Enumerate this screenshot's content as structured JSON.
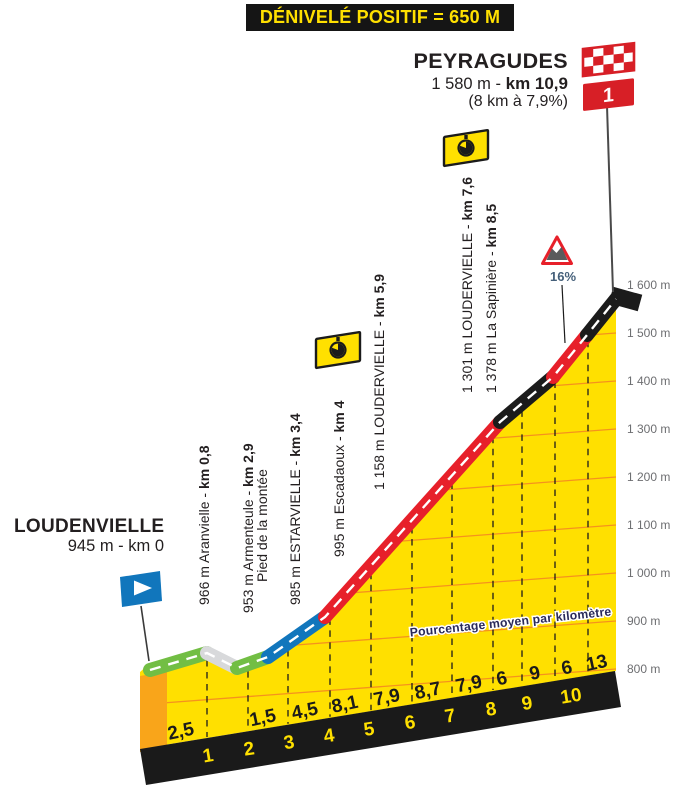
{
  "banner": {
    "text": "DÉNIVELÉ POSITIF = 650 M"
  },
  "finish": {
    "name": "PEYRAGUDES",
    "elevation_prefix": "1 580 m - ",
    "km_bold": "km 10,9",
    "note": "(8 km à 7,9%)",
    "flag_number": "1"
  },
  "start": {
    "name": "LOUDENVIELLE",
    "detail": "945 m - km 0"
  },
  "steep_warning": "16%",
  "watermark": "Pourcentage moyen par kilomètre",
  "stations": [
    {
      "normal": "966 m Aranvielle - ",
      "bold": "km 0,8"
    },
    {
      "normal": "953 m Armenteule - ",
      "bold": "km 2,9",
      "line2": "Pied de la montée"
    },
    {
      "normal": "985 m ESTARVIELLE - ",
      "bold": "km 3,4"
    },
    {
      "normal": "995 m Escadaoux - ",
      "bold": "km 4",
      "timecheck": true
    },
    {
      "normal": "1 158 m LOUDERVIELLE - ",
      "bold": "km 5,9"
    },
    {
      "normal": "1 301 m LOUDERVIELLE - ",
      "bold": "km 7,6",
      "timecheck": true
    },
    {
      "normal": "1 378 m La Sapinière - ",
      "bold": "km 8,5"
    }
  ],
  "colors": {
    "yellow": "#FFE000",
    "orange_face": "#F9A51A",
    "contour": "#F5921E",
    "band_black": "#1A1A1A",
    "road_green": "#72BE44",
    "road_blue": "#1176BC",
    "road_red": "#E7202A",
    "road_black": "#1B1B1B",
    "road_descent": "#D8D9DB",
    "flag_red": "#D71F26",
    "flag_blue": "#1176BC",
    "axis_gray": "#6d6e71",
    "warning_text": "#45607A",
    "watermark_ink": "#2A2A5A"
  },
  "chart_data": {
    "type": "area",
    "title": "PEYRAGUDES",
    "banner": "DÉNIVELÉ POSITIF = 650 M",
    "start_label": "LOUDENVIELLE — 945 m - km 0",
    "finish_label": "PEYRAGUDES — 1 580 m - km 10,9 (8 km à 7,9%)",
    "x_unit": "km",
    "y_unit": "m",
    "ylim": [
      800,
      1600
    ],
    "y_tick_labels": [
      "1 600 m",
      "1 500 m",
      "1 400 m",
      "1 300 m",
      "1 200 m",
      "1 100 m",
      "1 000 m",
      "900 m",
      "800 m"
    ],
    "x_tick_labels": [
      "1",
      "2",
      "3",
      "4",
      "5",
      "6",
      "7",
      "8",
      "9",
      "10"
    ],
    "gradient_labels_left_to_right": [
      "2,5",
      "",
      "1,5",
      "4,5",
      "8,1",
      "7,9",
      "8,7",
      "7,9",
      "6",
      "9",
      "6",
      "13"
    ],
    "max_gradient_label": "16%",
    "gradient_axis_note": "Pourcentage moyen par kilomètre",
    "waypoints": [
      {
        "km": 0,
        "elevation_m": 945,
        "name": "LOUDENVIELLE"
      },
      {
        "km": 0.8,
        "elevation_m": 966,
        "name": "Aranvielle"
      },
      {
        "km": 2.9,
        "elevation_m": 953,
        "name": "Armenteule",
        "note": "Pied de la montée"
      },
      {
        "km": 3.4,
        "elevation_m": 985,
        "name": "ESTARVIELLE"
      },
      {
        "km": 4,
        "elevation_m": 995,
        "name": "Escadaoux",
        "timecheck": true
      },
      {
        "km": 5.9,
        "elevation_m": 1158,
        "name": "LOUDERVIELLE"
      },
      {
        "km": 7.6,
        "elevation_m": 1301,
        "name": "LOUDERVIELLE",
        "timecheck": true
      },
      {
        "km": 8.5,
        "elevation_m": 1378,
        "name": "La Sapinière"
      },
      {
        "km": 10.9,
        "elevation_m": 1580,
        "name": "PEYRAGUDES",
        "category_flag": "1"
      }
    ]
  }
}
